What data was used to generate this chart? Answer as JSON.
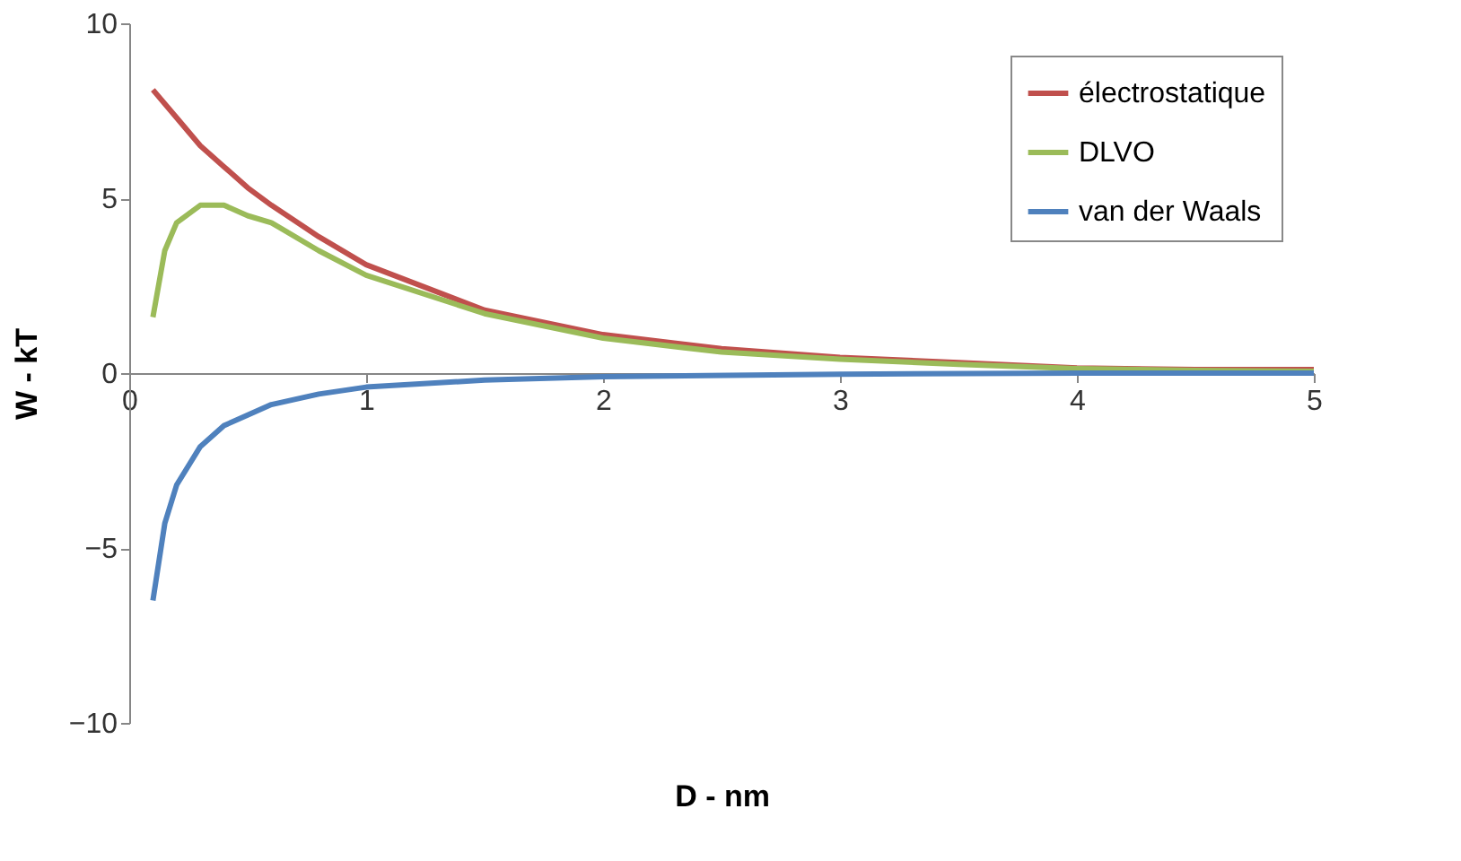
{
  "chart_data": {
    "type": "line",
    "xlabel": "D - nm",
    "ylabel": "W - kT",
    "xlim": [
      0,
      5
    ],
    "xticks": [
      0,
      1,
      2,
      3,
      4,
      5
    ],
    "ylim": [
      -10,
      10
    ],
    "yticks": [
      -10,
      -5,
      0,
      5,
      10
    ],
    "grid": false,
    "legend": "top right",
    "line_style": "solid",
    "marker": "none",
    "series": [
      {
        "name": "électrostatique",
        "color": "#c0504d",
        "x": [
          0.1,
          0.2,
          0.3,
          0.4,
          0.5,
          0.6,
          0.8,
          1,
          1.5,
          2,
          2.5,
          3,
          3.5,
          4,
          4.5,
          5
        ],
        "values": [
          8.1,
          7.3,
          6.5,
          5.9,
          5.3,
          4.8,
          3.9,
          3.1,
          1.8,
          1.1,
          0.7,
          0.45,
          0.3,
          0.15,
          0.1,
          0.1
        ]
      },
      {
        "name": "DLVO",
        "color": "#9bbb59",
        "x": [
          0.1,
          0.15,
          0.2,
          0.3,
          0.4,
          0.5,
          0.6,
          0.8,
          1,
          1.5,
          2,
          2.5,
          3,
          3.5,
          4,
          4.5,
          5
        ],
        "values": [
          1.6,
          3.5,
          4.3,
          4.8,
          4.8,
          4.5,
          4.3,
          3.5,
          2.8,
          1.7,
          1.0,
          0.6,
          0.4,
          0.25,
          0.13,
          0.08,
          0.05
        ]
      },
      {
        "name": "van der Waals",
        "color": "#4f81bd",
        "x": [
          0.1,
          0.15,
          0.2,
          0.3,
          0.4,
          0.5,
          0.6,
          0.8,
          1,
          1.5,
          2,
          3,
          4,
          5
        ],
        "values": [
          -6.5,
          -4.3,
          -3.2,
          -2.1,
          -1.5,
          -1.2,
          -0.9,
          -0.6,
          -0.4,
          -0.2,
          -0.1,
          -0.03,
          0,
          0
        ]
      }
    ]
  }
}
